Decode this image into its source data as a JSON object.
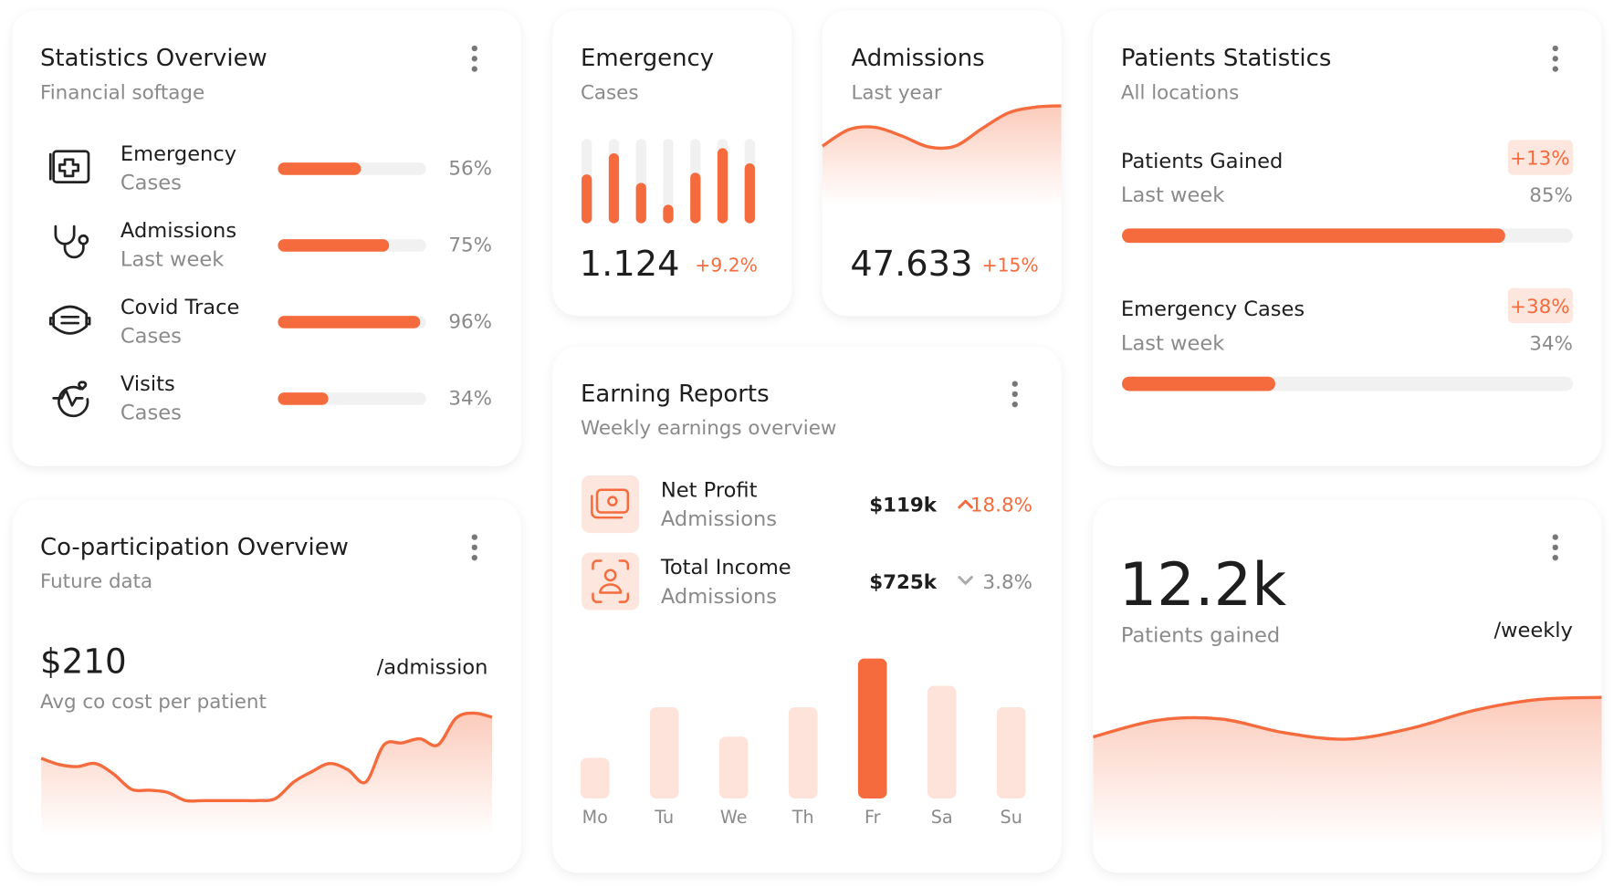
{
  "statistics_overview": {
    "title": "Statistics Overview",
    "subtitle": "Financial softage",
    "items": [
      {
        "name": "Emergency",
        "sub": "Cases",
        "value": 56,
        "label": "56%"
      },
      {
        "name": "Admissions",
        "sub": "Last week",
        "value": 75,
        "label": "75%"
      },
      {
        "name": "Covid Trace",
        "sub": "Cases",
        "value": 96,
        "label": "96%"
      },
      {
        "name": "Visits",
        "sub": "Cases",
        "value": 34,
        "label": "34%"
      }
    ]
  },
  "emergency": {
    "title": "Emergency",
    "subtitle": "Cases",
    "value": "1.124",
    "change": "+9.2%",
    "bars": [
      58,
      83,
      48,
      22,
      60,
      89,
      71
    ],
    "ylim": [
      0,
      100
    ]
  },
  "admissions": {
    "title": "Admissions",
    "subtitle": "Last year",
    "value": "47.633",
    "change": "+15%",
    "values": [
      40,
      63,
      66,
      54,
      39,
      40,
      64,
      86,
      94,
      96
    ],
    "ylim": [
      0,
      100
    ]
  },
  "patients_statistics": {
    "title": "Patients Statistics",
    "subtitle": "All locations",
    "items": [
      {
        "name": "Patients Gained",
        "sub": "Last week",
        "change": "+13%",
        "value": 85,
        "label": "85%"
      },
      {
        "name": "Emergency Cases",
        "sub": "Last week",
        "change": "+38%",
        "value": 34,
        "label": "34%"
      }
    ]
  },
  "co_participation": {
    "title": "Co-participation Overview",
    "subtitle": "Future data",
    "price": "$210",
    "unit": "/admission",
    "caption": "Avg co cost per patient",
    "values": [
      53,
      47,
      45,
      48,
      38,
      23,
      22,
      20,
      12,
      12,
      12,
      12,
      12,
      14,
      30,
      40,
      48,
      42,
      30,
      66,
      68,
      72,
      66,
      92,
      97,
      93
    ],
    "ylim": [
      0,
      100
    ]
  },
  "earning_reports": {
    "title": "Earning Reports",
    "subtitle": "Weekly earnings overview",
    "rows": [
      {
        "name": "Net Profit",
        "sub": "Admissions",
        "amount": "$119k",
        "change": "18.8%",
        "trend": "up"
      },
      {
        "name": "Total Income",
        "sub": "Admissions",
        "amount": "$725k",
        "change": "3.8%",
        "trend": "down"
      }
    ],
    "chart": {
      "type": "bar",
      "categories": [
        "Mo",
        "Tu",
        "We",
        "Th",
        "Fr",
        "Sa",
        "Su"
      ],
      "values": [
        40,
        90,
        61,
        90,
        138,
        111,
        90
      ],
      "ylim": [
        0,
        140
      ],
      "highlight": 4,
      "color": "#f56b3d",
      "muted_color": "#fde3d9"
    }
  },
  "weekly": {
    "value": "12.2k",
    "caption": "Patients gained",
    "unit": "/weekly",
    "values": [
      34,
      57,
      59,
      40,
      31,
      46,
      71,
      86,
      89
    ],
    "ylim": [
      0,
      100
    ]
  }
}
